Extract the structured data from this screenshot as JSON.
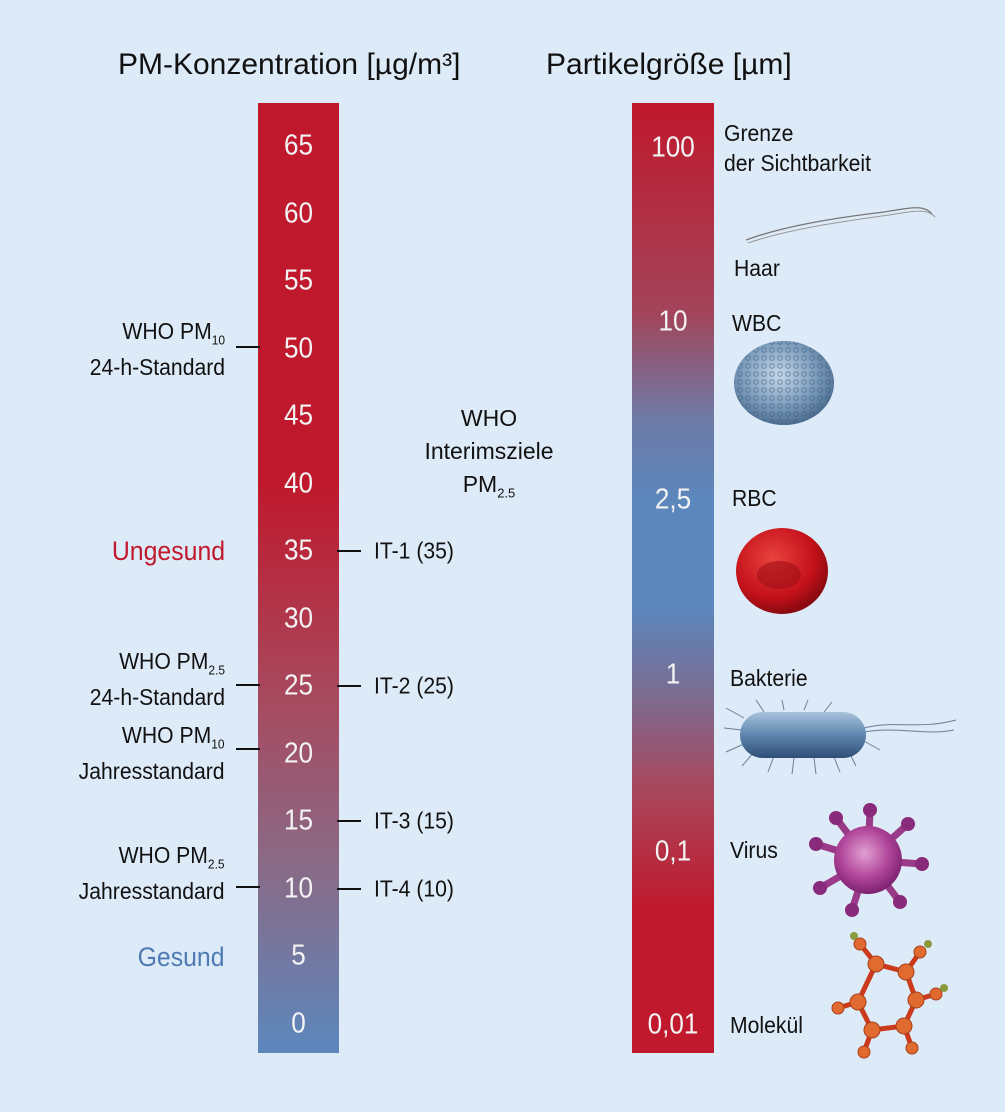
{
  "left": {
    "title": "PM-Konzentration [µg/m³]",
    "ticks": [
      "65",
      "60",
      "55",
      "50",
      "45",
      "40",
      "35",
      "30",
      "25",
      "20",
      "15",
      "10",
      "5",
      "0"
    ],
    "who_pm10_24h": {
      "line1": "WHO PM",
      "sub": "10",
      "line2": "24-h-Standard"
    },
    "who_pm25_24h": {
      "line1": "WHO PM",
      "sub": "2.5",
      "line2": "24-h-Standard"
    },
    "who_pm10_year": {
      "line1": "WHO PM",
      "sub": "10",
      "line2": "Jahresstandard"
    },
    "who_pm25_year": {
      "line1": "WHO PM",
      "sub": "2.5",
      "line2": "Jahresstandard"
    },
    "unhealthy": "Ungesund",
    "healthy": "Gesund",
    "unhealthy_color": "#c0182c",
    "healthy_color": "#4f7ab3",
    "interim_header": {
      "line1": "WHO",
      "line2": "Interimsziele",
      "line3": "PM",
      "sub": "2.5"
    },
    "interim_targets": [
      {
        "label": "IT-1 (35)",
        "value": 35
      },
      {
        "label": "IT-2 (25)",
        "value": 25
      },
      {
        "label": "IT-3 (15)",
        "value": 15
      },
      {
        "label": "IT-4 (10)",
        "value": 10
      }
    ]
  },
  "right": {
    "title": "Partikelgröße [µm]",
    "ticks": [
      "100",
      "10",
      "2,5",
      "1",
      "0,1",
      "0,01"
    ],
    "labels": {
      "visibility": {
        "line1": "Grenze",
        "line2": "der Sichtbarkeit"
      },
      "hair": "Haar",
      "wbc": "WBC",
      "rbc": "RBC",
      "bacteria": "Bakterie",
      "virus": "Virus",
      "molecule": "Molekül"
    },
    "icons": [
      "hair-icon",
      "white-blood-cell-icon",
      "red-blood-cell-icon",
      "bacterium-icon",
      "virus-icon",
      "molecule-icon"
    ]
  },
  "colors": {
    "bar_red": "#c0182c",
    "bar_blue": "#5c87bd",
    "background": "#ddeaf7"
  }
}
